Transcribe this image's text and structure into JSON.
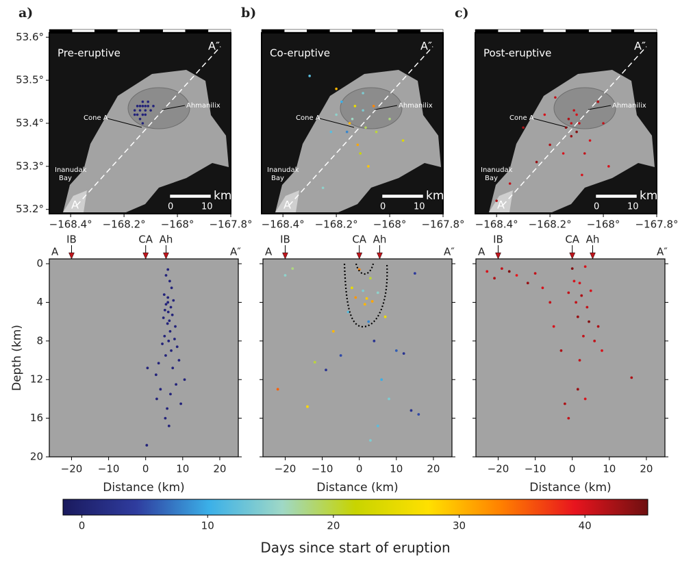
{
  "chart_data": [
    {
      "type": "map",
      "panel": "a)",
      "title": "Pre-eruptive",
      "xlim": [
        -168.48,
        -167.8
      ],
      "ylim": [
        53.19,
        53.61
      ],
      "xticks": [
        {
          "value": -168.4,
          "label": "−168.4°"
        },
        {
          "value": -168.2,
          "label": "−168.2°"
        },
        {
          "value": -168,
          "label": "−168°"
        },
        {
          "value": -167.8,
          "label": "−167.8°"
        }
      ],
      "yticks": [
        {
          "value": 53.2,
          "label": "53.2°"
        },
        {
          "value": 53.3,
          "label": "53.3°"
        },
        {
          "value": 53.4,
          "label": "53.4°"
        },
        {
          "value": 53.5,
          "label": "53.5°"
        },
        {
          "value": 53.6,
          "label": "53.6°"
        }
      ],
      "labels": {
        "end_top": "A″",
        "end_bottom": "A",
        "cone": "Cone A",
        "volcano": "Ahmanilix",
        "bay": [
          "Inanudak",
          "Bay"
        ]
      },
      "scale": {
        "unit": "km",
        "ticks": [
          "0",
          "10"
        ]
      },
      "color": "#23237a",
      "x": [
        -168.14,
        -168.13,
        -168.12,
        -168.11,
        -168.15,
        -168.13,
        -168.12,
        -168.14,
        -168.1,
        -168.16,
        -168.13,
        -168.11,
        -168.12,
        -168.15,
        -168.14,
        -168.16,
        -168.09,
        -168.13
      ],
      "y": [
        53.43,
        53.44,
        53.43,
        53.44,
        53.42,
        53.45,
        53.42,
        53.44,
        53.43,
        53.43,
        53.42,
        53.45,
        53.44,
        53.44,
        53.41,
        53.42,
        53.44,
        53.4
      ]
    },
    {
      "type": "map",
      "panel": "b)",
      "title": "Co-eruptive",
      "xlim": [
        -168.48,
        -167.8
      ],
      "ylim": [
        53.19,
        53.61
      ],
      "xticks": [
        {
          "value": -168.4,
          "label": "−168.4°"
        },
        {
          "value": -168.2,
          "label": "−168.2°"
        },
        {
          "value": -168,
          "label": "−168°"
        },
        {
          "value": -167.8,
          "label": "−167.8°"
        }
      ],
      "labels": {
        "end_top": "A″",
        "end_bottom": "A",
        "cone": "Cone A",
        "volcano": "Ahmanilix",
        "bay": [
          "Inanudak",
          "Bay"
        ]
      },
      "scale": {
        "unit": "km",
        "ticks": [
          "0",
          "10"
        ]
      },
      "x": [
        -168.2,
        -168.15,
        -168.1,
        -168.05,
        -168.12,
        -168.18,
        -168.08,
        -168.0,
        -168.22,
        -168.13,
        -168.1,
        -168.25,
        -168.11,
        -168.06,
        -168.16,
        -168.3,
        -168.09,
        -167.95,
        -168.2,
        -168.14
      ],
      "y": [
        53.42,
        53.4,
        53.43,
        53.38,
        53.35,
        53.45,
        53.3,
        53.41,
        53.38,
        53.44,
        53.47,
        53.25,
        53.33,
        53.44,
        53.38,
        53.51,
        53.39,
        53.36,
        53.48,
        53.41
      ],
      "days": [
        15,
        30,
        14,
        20,
        31,
        10,
        29,
        18,
        12,
        25,
        14,
        15,
        22,
        33,
        8,
        12,
        19,
        24,
        30,
        16
      ]
    },
    {
      "type": "map",
      "panel": "c)",
      "title": "Post-eruptive",
      "xlim": [
        -168.48,
        -167.8
      ],
      "ylim": [
        53.19,
        53.61
      ],
      "xticks": [
        {
          "value": -168.4,
          "label": "−168.4°"
        },
        {
          "value": -168.2,
          "label": "−168.2°"
        },
        {
          "value": -168,
          "label": "−168°"
        },
        {
          "value": -167.8,
          "label": "−167.8°"
        }
      ],
      "labels": {
        "end_top": "A″",
        "end_bottom": "A",
        "cone": "Cone A",
        "volcano": "Ahmanilix",
        "bay": [
          "Inanudak",
          "Bay"
        ]
      },
      "scale": {
        "unit": "km",
        "ticks": [
          "0",
          "10"
        ]
      },
      "x": [
        -168.12,
        -168.13,
        -168.1,
        -168.14,
        -168.11,
        -168.05,
        -168.2,
        -168.0,
        -168.08,
        -168.25,
        -168.35,
        -168.15,
        -168.02,
        -168.18,
        -168.1,
        -167.98,
        -168.3,
        -168.07,
        -168.22,
        -168.12,
        -168.09,
        -168.4
      ],
      "y": [
        53.4,
        53.41,
        53.42,
        53.39,
        53.43,
        53.36,
        53.35,
        53.4,
        53.28,
        53.31,
        53.26,
        53.33,
        53.45,
        53.46,
        53.38,
        53.3,
        53.39,
        53.33,
        53.42,
        53.37,
        53.4,
        53.22
      ],
      "days": [
        41,
        42,
        40,
        44,
        41,
        40,
        42,
        41,
        40,
        43,
        41,
        40,
        42,
        41,
        44,
        40,
        42,
        41,
        40,
        43,
        41,
        42
      ]
    },
    {
      "type": "section",
      "xlabel": "Distance (km)",
      "ylabel": "Depth (km)",
      "xlim": [
        -26,
        25
      ],
      "ylim": [
        20,
        -0.5
      ],
      "xticks": [
        {
          "value": -20,
          "label": "−20"
        },
        {
          "value": -10,
          "label": "−10"
        },
        0,
        10,
        20
      ],
      "yticks": [
        0,
        4,
        8,
        12,
        16,
        20
      ],
      "ends": [
        "A",
        "A″"
      ],
      "markers": [
        {
          "label": "IB",
          "x": -20
        },
        {
          "label": "CA",
          "x": 0
        },
        {
          "label": "Ah",
          "x": 5.5
        }
      ],
      "color": "#23237a",
      "x": [
        6,
        5.5,
        6.5,
        7,
        5,
        6,
        7.5,
        6,
        5.5,
        6.8,
        5.2,
        6.1,
        7.2,
        4.8,
        6.4,
        5.9,
        8,
        6.6,
        5.1,
        7.8,
        6.2,
        4.5,
        8.5,
        6.9,
        5.4,
        9,
        3.5,
        7.3,
        0.5,
        2.8,
        10.5,
        8.2,
        4,
        6.7,
        3,
        9.5,
        5.8,
        5.3,
        6.3,
        0.3
      ],
      "y": [
        0.6,
        1.2,
        1.8,
        2.5,
        3.2,
        3.5,
        3.8,
        4,
        4.2,
        4.5,
        4.8,
        5,
        5.3,
        5.6,
        5.9,
        6.2,
        6.5,
        7,
        7.5,
        7.8,
        8,
        8.3,
        8.6,
        9,
        9.5,
        10,
        10.3,
        10.8,
        10.8,
        11.5,
        12,
        12.5,
        13,
        13.5,
        14,
        14.5,
        15,
        16,
        16.8,
        18.8
      ]
    },
    {
      "type": "section",
      "xlabel": "Distance (km)",
      "xlim": [
        -26,
        25
      ],
      "ylim": [
        20,
        -0.5
      ],
      "xticks": [
        {
          "value": -20,
          "label": "−20"
        },
        {
          "value": -10,
          "label": "−10"
        },
        0,
        10,
        20
      ],
      "yticks": [
        0,
        4,
        8,
        12,
        16,
        20
      ],
      "ends": [
        "A",
        "A″"
      ],
      "markers": [
        {
          "label": "IB",
          "x": -20
        },
        {
          "label": "CA",
          "x": 0
        },
        {
          "label": "Ah",
          "x": 5.5
        }
      ],
      "x": [
        -20,
        -18,
        -14,
        -12,
        -9,
        -7,
        -5,
        -3,
        -2,
        -1,
        0,
        1,
        1.5,
        2,
        2.5,
        3,
        3.5,
        4,
        5,
        6,
        7,
        8,
        10,
        12,
        14,
        15,
        16,
        3,
        5,
        -22
      ],
      "y": [
        1.2,
        0.5,
        14.8,
        10.2,
        11,
        7,
        9.5,
        5,
        2.5,
        3.5,
        0.6,
        2.8,
        4.2,
        3.6,
        6,
        1.5,
        3.9,
        8,
        3,
        12,
        5.5,
        14,
        9,
        9.3,
        15.2,
        1,
        15.6,
        18.3,
        16.8,
        13
      ],
      "days": [
        15,
        18,
        28,
        20,
        3,
        30,
        5,
        12,
        25,
        32,
        33,
        14,
        30,
        29,
        8,
        20,
        31,
        3,
        15,
        10,
        26,
        14,
        6,
        3,
        3,
        4,
        5,
        14,
        12,
        35
      ]
    },
    {
      "type": "section",
      "xlabel": "Distance (km)",
      "xlim": [
        -26,
        25
      ],
      "ylim": [
        20,
        -0.5
      ],
      "xticks": [
        {
          "value": -20,
          "label": "−20"
        },
        {
          "value": -10,
          "label": "−10"
        },
        0,
        10,
        20
      ],
      "yticks": [
        0,
        4,
        8,
        12,
        16,
        20
      ],
      "ends": [
        "A",
        "A″"
      ],
      "markers": [
        {
          "label": "IB",
          "x": -20
        },
        {
          "label": "CA",
          "x": 0
        },
        {
          "label": "Ah",
          "x": 5.5
        }
      ],
      "x": [
        -23,
        -21,
        -19,
        -17,
        -15,
        -12,
        -10,
        -8,
        -6,
        -5,
        -3,
        -1,
        0,
        0.5,
        1,
        1.5,
        2,
        2.5,
        3,
        3.5,
        4,
        4.5,
        5,
        6,
        7,
        8,
        16,
        -1,
        1.5,
        3.5,
        2,
        -2
      ],
      "y": [
        0.8,
        1.5,
        0.5,
        0.8,
        1.2,
        2,
        1,
        2.5,
        4,
        6.5,
        9,
        3,
        0.5,
        1.8,
        4,
        5.5,
        2,
        3.3,
        7.5,
        0.3,
        4.5,
        6,
        2.8,
        8,
        6.5,
        9,
        11.8,
        16,
        13,
        14,
        10,
        14.5
      ],
      "days": [
        40,
        42,
        41,
        44,
        39,
        43,
        41,
        40,
        41,
        40,
        42,
        41,
        44,
        40,
        41,
        43,
        40,
        42,
        41,
        40,
        41,
        44,
        40,
        41,
        42,
        40,
        42,
        41,
        43,
        40,
        41,
        42
      ]
    },
    {
      "type": "colorbar",
      "label": "Days since start of eruption",
      "lim": [
        -1.5,
        45
      ],
      "ticks": [
        0,
        10,
        20,
        30,
        40
      ],
      "colors": [
        "#1a1a5e",
        "#2f3c9e",
        "#3bb0e8",
        "#9fd8c6",
        "#c8d400",
        "#ffe000",
        "#ff7f00",
        "#e8141e",
        "#6e1010"
      ]
    }
  ]
}
